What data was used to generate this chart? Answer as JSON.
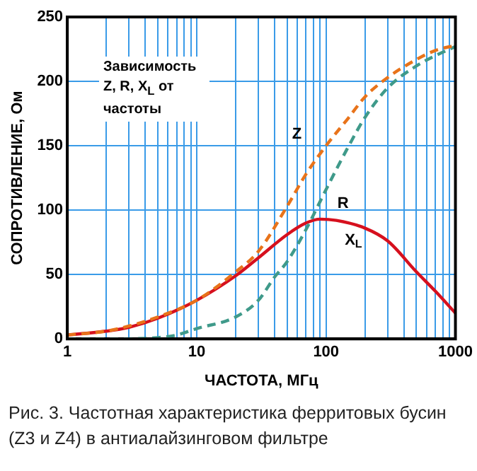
{
  "chart_data": {
    "type": "line",
    "xlabel": "ЧАСТОТА, МГц",
    "ylabel": "СОПРОТИВЛЕНИЕ, Ом",
    "log": "x",
    "grid": true,
    "marker": "none",
    "legend": false,
    "xlim": [
      1,
      1000
    ],
    "xticks": [
      1,
      {
        "value": 2,
        "label": null
      },
      {
        "value": 3,
        "label": null
      },
      {
        "value": 4,
        "label": null
      },
      {
        "value": 5,
        "label": null
      },
      {
        "value": 6,
        "label": null
      },
      {
        "value": 7,
        "label": null
      },
      {
        "value": 8,
        "label": null
      },
      {
        "value": 9,
        "label": null
      },
      10,
      {
        "value": 20,
        "label": null
      },
      {
        "value": 30,
        "label": null
      },
      {
        "value": 40,
        "label": null
      },
      {
        "value": 50,
        "label": null
      },
      {
        "value": 60,
        "label": null
      },
      {
        "value": 70,
        "label": null
      },
      {
        "value": 80,
        "label": null
      },
      {
        "value": 90,
        "label": null
      },
      100,
      {
        "value": 200,
        "label": null
      },
      {
        "value": 300,
        "label": null
      },
      {
        "value": 400,
        "label": null
      },
      {
        "value": 500,
        "label": null
      },
      {
        "value": 600,
        "label": null
      },
      {
        "value": 700,
        "label": null
      },
      {
        "value": 800,
        "label": null
      },
      {
        "value": 900,
        "label": null
      },
      1000
    ],
    "ylim": [
      0,
      250
    ],
    "yticks": [
      0,
      50,
      100,
      150,
      200,
      250
    ],
    "series": [
      {
        "name": "Z",
        "color": "#e8731a",
        "line_style": "dashed",
        "x": [
          1,
          2,
          3,
          5,
          10,
          20,
          30,
          50,
          70,
          100,
          150,
          200,
          300,
          500,
          700,
          1000
        ],
        "values": [
          3,
          6,
          10,
          17,
          30,
          52,
          68,
          103,
          128,
          150,
          172,
          188,
          203,
          217,
          224,
          228
        ]
      },
      {
        "name": "R",
        "color": "#3f9a8a",
        "line_style": "dashed",
        "x": [
          1,
          2,
          5,
          7,
          10,
          20,
          30,
          40,
          50,
          70,
          100,
          150,
          200,
          300,
          500,
          700,
          1000
        ],
        "values": [
          0,
          0,
          1,
          3,
          8,
          17,
          30,
          48,
          60,
          85,
          116,
          150,
          172,
          195,
          212,
          220,
          227
        ]
      },
      {
        "name": "X$_{L}$",
        "color": "#d6101e",
        "line_style": "solid",
        "x": [
          1,
          2,
          3,
          5,
          10,
          20,
          30,
          50,
          70,
          90,
          120,
          200,
          300,
          500,
          700,
          1000
        ],
        "values": [
          3,
          6,
          9,
          16,
          30,
          49,
          63,
          81,
          90,
          93,
          92,
          86,
          76,
          52,
          37,
          20
        ]
      }
    ],
    "annotations": [
      "Зависимость Z, R, X$_{L}$ от частоты",
      "Рис. 3. Частотная характеристика ферритовых бусин (Z3 и Z4) в антиалайзинговом фильтре"
    ]
  }
}
